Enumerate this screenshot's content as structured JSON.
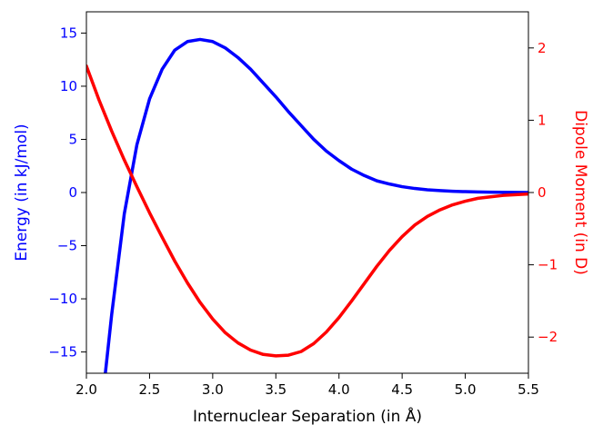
{
  "chart_data": {
    "type": "line",
    "xlabel": "Internuclear Separation (in Å)",
    "ylabel_left": "Energy (in kJ/mol)",
    "ylabel_right": "Dipole Moment (in D)",
    "xlim": [
      2.0,
      5.5
    ],
    "ylim_left": [
      -17,
      17
    ],
    "ylim_right": [
      -2.5,
      2.5
    ],
    "x_ticks": [
      2.0,
      2.5,
      3.0,
      3.5,
      4.0,
      4.5,
      5.0,
      5.5
    ],
    "x_tick_labels": [
      "2.0",
      "2.5",
      "3.0",
      "3.5",
      "4.0",
      "4.5",
      "5.0",
      "5.5"
    ],
    "y_left_ticks": [
      -15,
      -10,
      -5,
      0,
      5,
      10,
      15
    ],
    "y_left_tick_labels": [
      "−15",
      "−10",
      "−5",
      "0",
      "5",
      "10",
      "15"
    ],
    "y_right_ticks": [
      -2,
      -1,
      0,
      1,
      2
    ],
    "y_right_tick_labels": [
      "−2",
      "−1",
      "0",
      "1",
      "2"
    ],
    "grid": false,
    "colors": {
      "energy": "#0000ff",
      "dipole": "#ff0000",
      "left_axis": "#0000ff",
      "right_axis": "#ff0000"
    },
    "series": [
      {
        "axis": "left",
        "color": "#0000ff",
        "points": [
          [
            2.15,
            -17.0
          ],
          [
            2.2,
            -11.5
          ],
          [
            2.3,
            -2.0
          ],
          [
            2.4,
            4.5
          ],
          [
            2.5,
            8.8
          ],
          [
            2.6,
            11.6
          ],
          [
            2.7,
            13.4
          ],
          [
            2.8,
            14.2
          ],
          [
            2.9,
            14.4
          ],
          [
            3.0,
            14.2
          ],
          [
            3.1,
            13.6
          ],
          [
            3.2,
            12.7
          ],
          [
            3.3,
            11.6
          ],
          [
            3.4,
            10.3
          ],
          [
            3.5,
            9.0
          ],
          [
            3.6,
            7.6
          ],
          [
            3.7,
            6.3
          ],
          [
            3.8,
            5.0
          ],
          [
            3.9,
            3.9
          ],
          [
            4.0,
            3.0
          ],
          [
            4.1,
            2.2
          ],
          [
            4.2,
            1.6
          ],
          [
            4.3,
            1.1
          ],
          [
            4.4,
            0.8
          ],
          [
            4.5,
            0.55
          ],
          [
            4.6,
            0.38
          ],
          [
            4.7,
            0.26
          ],
          [
            4.8,
            0.18
          ],
          [
            4.9,
            0.12
          ],
          [
            5.0,
            0.08
          ],
          [
            5.1,
            0.05
          ],
          [
            5.2,
            0.03
          ],
          [
            5.3,
            0.02
          ],
          [
            5.4,
            0.01
          ],
          [
            5.5,
            0.0
          ]
        ]
      },
      {
        "axis": "right",
        "color": "#ff0000",
        "points": [
          [
            2.0,
            1.75
          ],
          [
            2.1,
            1.28
          ],
          [
            2.2,
            0.85
          ],
          [
            2.3,
            0.45
          ],
          [
            2.4,
            0.08
          ],
          [
            2.5,
            -0.28
          ],
          [
            2.6,
            -0.62
          ],
          [
            2.7,
            -0.95
          ],
          [
            2.8,
            -1.25
          ],
          [
            2.9,
            -1.52
          ],
          [
            3.0,
            -1.75
          ],
          [
            3.1,
            -1.94
          ],
          [
            3.2,
            -2.08
          ],
          [
            3.3,
            -2.18
          ],
          [
            3.4,
            -2.24
          ],
          [
            3.5,
            -2.26
          ],
          [
            3.6,
            -2.25
          ],
          [
            3.7,
            -2.2
          ],
          [
            3.8,
            -2.09
          ],
          [
            3.9,
            -1.93
          ],
          [
            4.0,
            -1.73
          ],
          [
            4.1,
            -1.5
          ],
          [
            4.2,
            -1.26
          ],
          [
            4.3,
            -1.02
          ],
          [
            4.4,
            -0.8
          ],
          [
            4.5,
            -0.61
          ],
          [
            4.6,
            -0.45
          ],
          [
            4.7,
            -0.33
          ],
          [
            4.8,
            -0.24
          ],
          [
            4.9,
            -0.17
          ],
          [
            5.0,
            -0.12
          ],
          [
            5.1,
            -0.08
          ],
          [
            5.2,
            -0.06
          ],
          [
            5.3,
            -0.04
          ],
          [
            5.4,
            -0.03
          ],
          [
            5.5,
            -0.02
          ]
        ]
      }
    ]
  }
}
